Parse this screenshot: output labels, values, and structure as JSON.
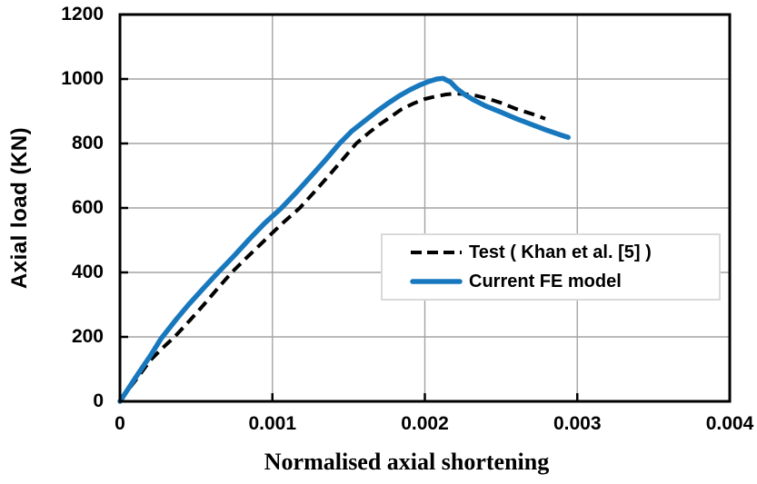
{
  "style": {
    "background": "#ffffff",
    "grid_color": "#a3a3a3",
    "axis_color": "#000000",
    "legend_border": "#d9d9d9",
    "legend_background": "#ffffff"
  },
  "chart_data": {
    "type": "line",
    "title": "",
    "xlabel": "Normalised axial shortening",
    "ylabel": "Axial load (KN)",
    "xlim": [
      0,
      0.004
    ],
    "ylim": [
      0,
      1200
    ],
    "grid": true,
    "legend_position": "inside lower-right",
    "x_tick_values": [
      0,
      0.001,
      0.002,
      0.003,
      0.004
    ],
    "x_tick_labels": [
      "0",
      "0.001",
      "0.002",
      "0.003",
      "0.004"
    ],
    "y_tick_values": [
      0,
      200,
      400,
      600,
      800,
      1000,
      1200
    ],
    "y_tick_labels": [
      "0",
      "200",
      "400",
      "600",
      "800",
      "1000",
      "1200"
    ],
    "series": [
      {
        "name": "Test ( Khan et al. [5] )",
        "style": "dashed",
        "color": "#000000",
        "points": [
          [
            0,
            0
          ],
          [
            5e-05,
            33
          ],
          [
            0.00012,
            76
          ],
          [
            0.0002,
            128
          ],
          [
            0.00028,
            166
          ],
          [
            0.000358,
            200
          ],
          [
            0.00046,
            252
          ],
          [
            0.00055,
            300
          ],
          [
            0.00064,
            350
          ],
          [
            0.000733,
            400
          ],
          [
            0.00084,
            450
          ],
          [
            0.00095,
            500
          ],
          [
            0.00106,
            550
          ],
          [
            0.00118,
            600
          ],
          [
            0.00128,
            652
          ],
          [
            0.00137,
            700
          ],
          [
            0.00146,
            750
          ],
          [
            0.00155,
            800
          ],
          [
            0.00163,
            832
          ],
          [
            0.0017,
            858
          ],
          [
            0.00178,
            884
          ],
          [
            0.00185,
            907
          ],
          [
            0.00193,
            925
          ],
          [
            0.002,
            938
          ],
          [
            0.00207,
            946
          ],
          [
            0.00214,
            952
          ],
          [
            0.0022,
            955
          ],
          [
            0.00227,
            953
          ],
          [
            0.00234,
            948
          ],
          [
            0.00242,
            938
          ],
          [
            0.0025,
            926
          ],
          [
            0.0026,
            907
          ],
          [
            0.0027,
            892
          ],
          [
            0.00279,
            877
          ]
        ]
      },
      {
        "name": "Current FE model",
        "style": "solid",
        "color": "#1878be",
        "points": [
          [
            0,
            0
          ],
          [
            5e-05,
            36
          ],
          [
            0.0001,
            72
          ],
          [
            0.0002,
            142
          ],
          [
            0.00027,
            195
          ],
          [
            0.00037,
            255
          ],
          [
            0.00045,
            300
          ],
          [
            0.00055,
            352
          ],
          [
            0.000644,
            400
          ],
          [
            0.00075,
            452
          ],
          [
            0.00085,
            504
          ],
          [
            0.00095,
            553
          ],
          [
            0.00106,
            600
          ],
          [
            0.00116,
            650
          ],
          [
            0.00125,
            697
          ],
          [
            0.00135,
            750
          ],
          [
            0.00144,
            800
          ],
          [
            0.00152,
            838
          ],
          [
            0.0016,
            868
          ],
          [
            0.0017,
            905
          ],
          [
            0.00175,
            922
          ],
          [
            0.00183,
            947
          ],
          [
            0.0019,
            966
          ],
          [
            0.00197,
            982
          ],
          [
            0.00203,
            993
          ],
          [
            0.00208,
            1000
          ],
          [
            0.00212,
            1002
          ],
          [
            0.00217,
            990
          ],
          [
            0.00221,
            970
          ],
          [
            0.00226,
            952
          ],
          [
            0.00232,
            935
          ],
          [
            0.0024,
            916
          ],
          [
            0.0025,
            897
          ],
          [
            0.0026,
            877
          ],
          [
            0.0027,
            859
          ],
          [
            0.0028,
            841
          ],
          [
            0.0029,
            825
          ],
          [
            0.00294,
            819
          ]
        ]
      }
    ]
  }
}
